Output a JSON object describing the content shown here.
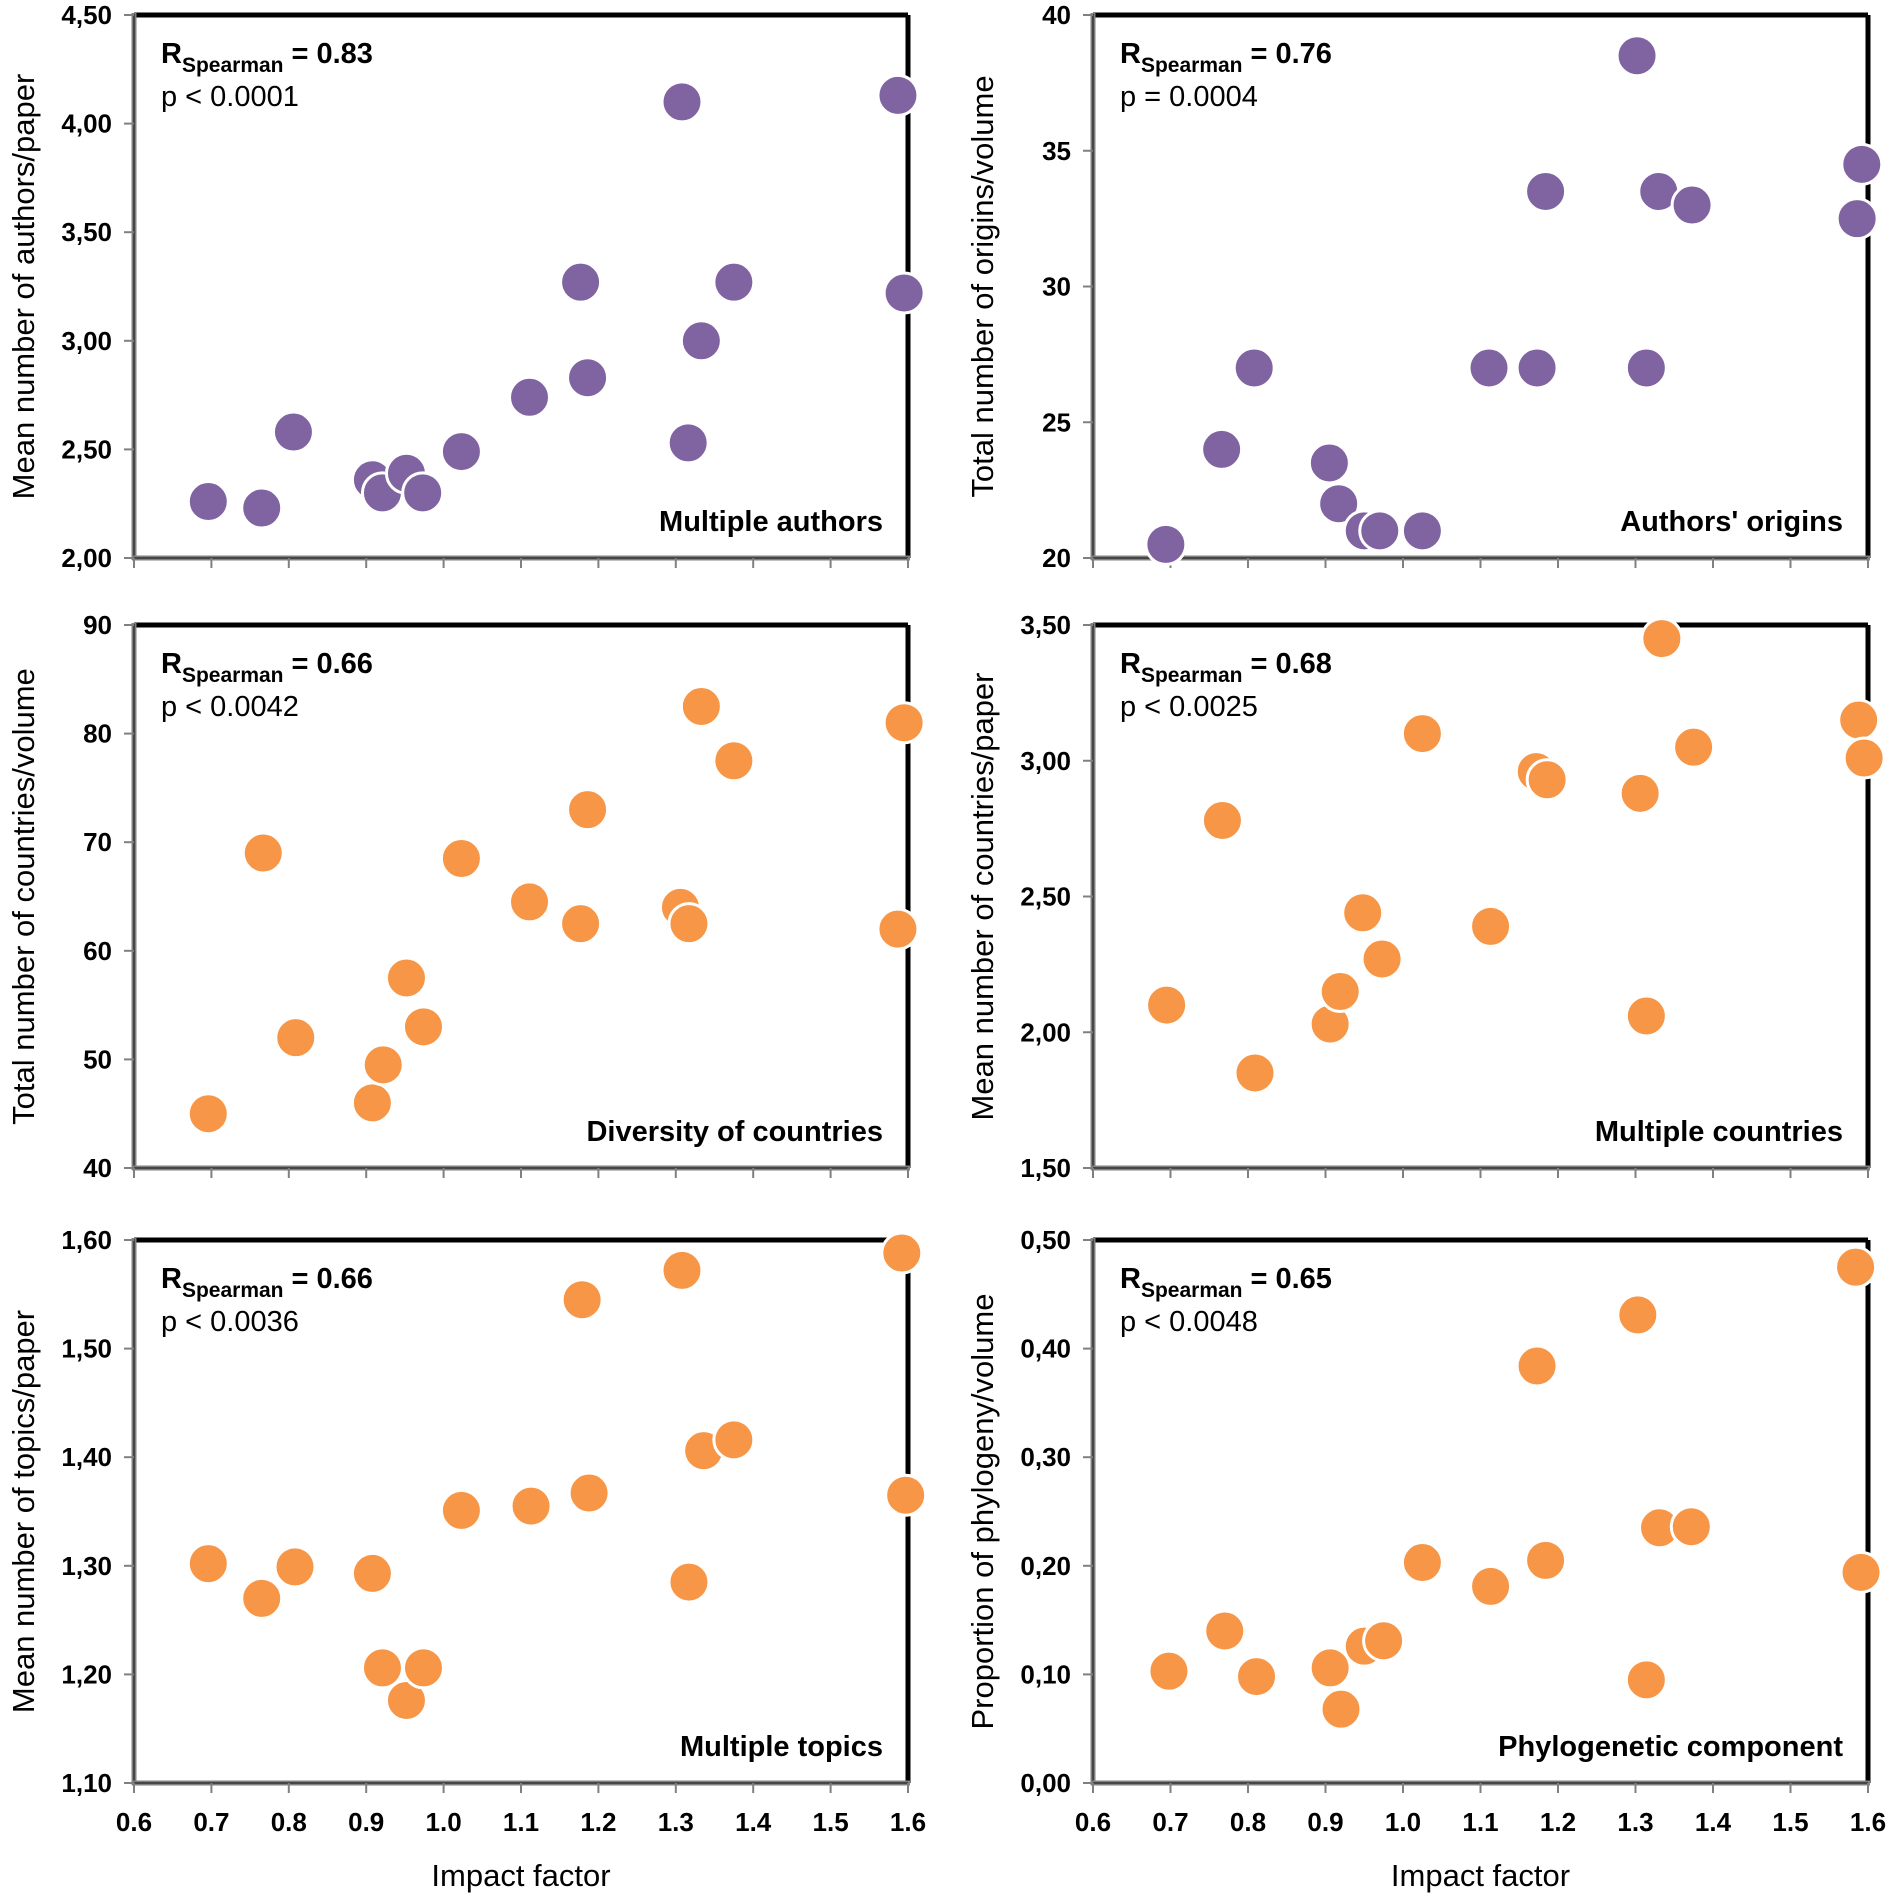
{
  "figure": {
    "x_axis_title": "Impact factor",
    "stat_r_prefix": "R",
    "stat_r_subscript": "Spearman",
    "colors": {
      "purple": "#8064A2",
      "orange": "#F79646",
      "marker_edge": "#FFFFFF",
      "frame": "#000000",
      "axis": "#808080"
    }
  },
  "chart_data": [
    {
      "type": "scatter",
      "panel": "top-left",
      "title": "Multiple authors",
      "xlabel": "",
      "ylabel": "Mean number of authors/paper",
      "xlim": [
        0.6,
        1.6
      ],
      "ylim": [
        2.0,
        4.5
      ],
      "xticks": [
        "0.6",
        "0.7",
        "0.8",
        "0.9",
        "1.0",
        "1.1",
        "1.2",
        "1.3",
        "1.4",
        "1.5",
        "1.6"
      ],
      "xticks_labeled": false,
      "yticks": [
        2.0,
        2.5,
        3.0,
        3.5,
        4.0,
        4.5
      ],
      "ytick_labels": [
        "2,00",
        "2,50",
        "3,00",
        "3,50",
        "4,00",
        "4,50"
      ],
      "r_value": "= 0.83",
      "p_value": "p < 0.0001",
      "color": "#8064A2",
      "x": [
        0.696,
        0.765,
        0.806,
        0.908,
        0.921,
        0.952,
        0.973,
        1.023,
        1.111,
        1.177,
        1.186,
        1.308,
        1.316,
        1.333,
        1.375,
        1.587,
        1.595
      ],
      "y": [
        2.26,
        2.23,
        2.58,
        2.36,
        2.3,
        2.39,
        2.3,
        2.49,
        2.74,
        3.27,
        2.83,
        4.1,
        2.53,
        3.0,
        3.27,
        4.13,
        3.22
      ]
    },
    {
      "type": "scatter",
      "panel": "top-right",
      "title": "Authors' origins",
      "xlabel": "",
      "ylabel": "Total number of origins/volume",
      "xlim": [
        0.6,
        1.6
      ],
      "ylim": [
        20,
        40
      ],
      "xticks": [
        "0.6",
        "0.7",
        "0.8",
        "0.9",
        "1.0",
        "1.1",
        "1.2",
        "1.3",
        "1.4",
        "1.5",
        "1.6"
      ],
      "xticks_labeled": false,
      "yticks": [
        20,
        25,
        30,
        35,
        40
      ],
      "ytick_labels": [
        "20",
        "25",
        "30",
        "35",
        "40"
      ],
      "r_value": "= 0.76",
      "p_value": "p = 0.0004",
      "color": "#8064A2",
      "x": [
        0.694,
        0.766,
        0.808,
        0.905,
        0.917,
        0.95,
        0.97,
        1.025,
        1.111,
        1.173,
        1.184,
        1.302,
        1.314,
        1.33,
        1.373,
        1.586,
        1.592
      ],
      "y": [
        20.5,
        24.0,
        27.0,
        23.5,
        22.0,
        21.0,
        21.0,
        21.0,
        27.0,
        27.0,
        33.5,
        38.5,
        27.0,
        33.5,
        33.0,
        32.5,
        34.5
      ]
    },
    {
      "type": "scatter",
      "panel": "middle-left",
      "title": "Diversity of countries",
      "xlabel": "",
      "ylabel": "Total number of countries/volume",
      "xlim": [
        0.6,
        1.6
      ],
      "ylim": [
        40,
        90
      ],
      "xticks": [
        "0.6",
        "0.7",
        "0.8",
        "0.9",
        "1.0",
        "1.1",
        "1.2",
        "1.3",
        "1.4",
        "1.5",
        "1.6"
      ],
      "xticks_labeled": false,
      "yticks": [
        40,
        50,
        60,
        70,
        80,
        90
      ],
      "ytick_labels": [
        "40",
        "50",
        "60",
        "70",
        "80",
        "90"
      ],
      "r_value": "= 0.66",
      "p_value": "p < 0.0042",
      "color": "#F79646",
      "x": [
        0.696,
        0.767,
        0.809,
        0.908,
        0.922,
        0.952,
        0.974,
        1.023,
        1.111,
        1.177,
        1.186,
        1.306,
        1.317,
        1.333,
        1.375,
        1.587,
        1.595
      ],
      "y": [
        45.0,
        69.0,
        52.0,
        46.0,
        49.5,
        57.5,
        53.0,
        68.5,
        64.5,
        62.5,
        73.0,
        64.0,
        62.5,
        82.5,
        77.5,
        62.0,
        81.0
      ]
    },
    {
      "type": "scatter",
      "panel": "middle-right",
      "title": "Multiple countries",
      "xlabel": "",
      "ylabel": "Mean number of countries/paper",
      "xlim": [
        0.6,
        1.6
      ],
      "ylim": [
        1.5,
        3.5
      ],
      "xticks": [
        "0.6",
        "0.7",
        "0.8",
        "0.9",
        "1.0",
        "1.1",
        "1.2",
        "1.3",
        "1.4",
        "1.5",
        "1.6"
      ],
      "xticks_labeled": false,
      "yticks": [
        1.5,
        2.0,
        2.5,
        3.0,
        3.5
      ],
      "ytick_labels": [
        "1,50",
        "2,00",
        "2,50",
        "3,00",
        "3,50"
      ],
      "r_value": "= 0.68",
      "p_value": "p < 0.0025",
      "color": "#F79646",
      "x": [
        0.695,
        0.767,
        0.809,
        0.906,
        0.919,
        0.948,
        0.973,
        1.025,
        1.113,
        1.172,
        1.186,
        1.306,
        1.314,
        1.334,
        1.375,
        1.588,
        1.595
      ],
      "y": [
        2.1,
        2.78,
        1.85,
        2.03,
        2.15,
        2.44,
        2.27,
        3.1,
        2.39,
        2.96,
        2.93,
        2.88,
        2.06,
        3.45,
        3.05,
        3.15,
        3.01
      ]
    },
    {
      "type": "scatter",
      "panel": "bottom-left",
      "title": "Multiple topics",
      "xlabel": "Impact factor",
      "ylabel": "Mean number of topics/paper",
      "xlim": [
        0.6,
        1.6
      ],
      "ylim": [
        1.1,
        1.6
      ],
      "xticks": [
        "0.6",
        "0.7",
        "0.8",
        "0.9",
        "1.0",
        "1.1",
        "1.2",
        "1.3",
        "1.4",
        "1.5",
        "1.6"
      ],
      "xticks_labeled": true,
      "yticks": [
        1.1,
        1.2,
        1.3,
        1.4,
        1.5,
        1.6
      ],
      "ytick_labels": [
        "1,10",
        "1,20",
        "1,30",
        "1,40",
        "1,50",
        "1,60"
      ],
      "r_value": "= 0.66",
      "p_value": "p < 0.0036",
      "color": "#F79646",
      "x": [
        0.696,
        0.765,
        0.808,
        0.908,
        0.921,
        0.952,
        0.974,
        1.023,
        1.113,
        1.179,
        1.188,
        1.308,
        1.317,
        1.336,
        1.375,
        1.592,
        1.597
      ],
      "y": [
        1.302,
        1.27,
        1.299,
        1.293,
        1.206,
        1.176,
        1.206,
        1.351,
        1.355,
        1.545,
        1.367,
        1.572,
        1.285,
        1.406,
        1.416,
        1.588,
        1.365
      ]
    },
    {
      "type": "scatter",
      "panel": "bottom-right",
      "title": "Phylogenetic component",
      "xlabel": "Impact factor",
      "ylabel": "Proportion of phylogeny/volume",
      "xlim": [
        0.6,
        1.6
      ],
      "ylim": [
        0.0,
        0.5
      ],
      "xticks": [
        "0.6",
        "0.7",
        "0.8",
        "0.9",
        "1.0",
        "1.1",
        "1.2",
        "1.3",
        "1.4",
        "1.5",
        "1.6"
      ],
      "xticks_labeled": true,
      "yticks": [
        0.0,
        0.1,
        0.2,
        0.3,
        0.4,
        0.5
      ],
      "ytick_labels": [
        "0,00",
        "0,10",
        "0,20",
        "0,30",
        "0,40",
        "0,50"
      ],
      "r_value": "= 0.65",
      "p_value": "p < 0.0048",
      "color": "#F79646",
      "x": [
        0.698,
        0.77,
        0.811,
        0.906,
        0.92,
        0.95,
        0.975,
        1.025,
        1.113,
        1.173,
        1.184,
        1.303,
        1.314,
        1.331,
        1.372,
        1.584,
        1.591
      ],
      "y": [
        0.103,
        0.14,
        0.098,
        0.106,
        0.068,
        0.126,
        0.131,
        0.203,
        0.181,
        0.384,
        0.205,
        0.431,
        0.095,
        0.235,
        0.236,
        0.475,
        0.194
      ]
    }
  ]
}
